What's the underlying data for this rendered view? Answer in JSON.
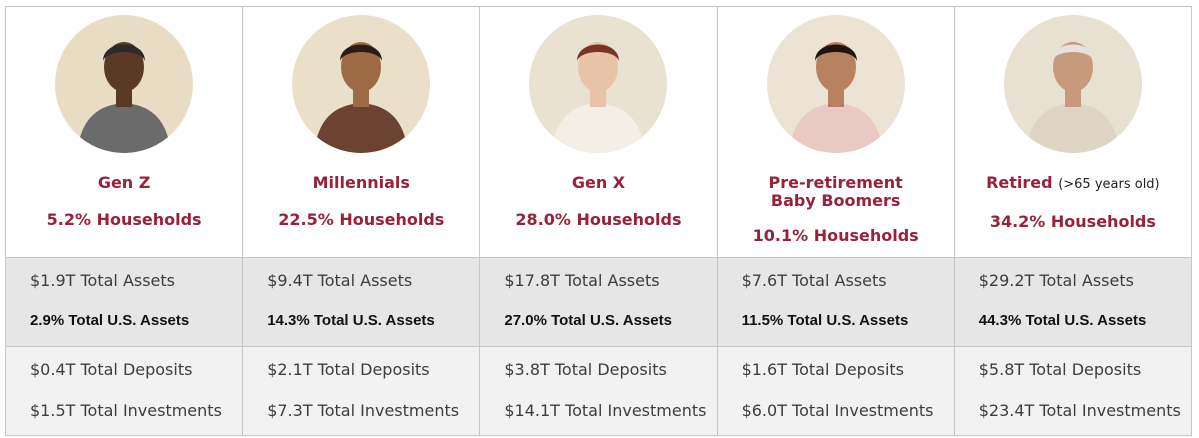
{
  "generations": [
    {
      "name": "Gen Z",
      "note": "",
      "households": "5.2% Households",
      "total_assets": "$1.9T Total Assets",
      "us_assets": "2.9% Total U.S. Assets",
      "deposits": "$0.4T Total Deposits",
      "investments": "$1.5T Total Investments",
      "photo": {
        "bg": "#e8dcc4",
        "skin": "#5a3a26",
        "shirt": "#6b6b6b",
        "hair": "#2a2a2a"
      }
    },
    {
      "name": "Millennials",
      "note": "",
      "households": "22.5% Households",
      "total_assets": "$9.4T Total Assets",
      "us_assets": "14.3% Total U.S. Assets",
      "deposits": "$2.1T Total Deposits",
      "investments": "$7.3T Total Investments",
      "photo": {
        "bg": "#eadfc9",
        "skin": "#9c6a45",
        "shirt": "#6b4330",
        "hair": "#2a1d15"
      }
    },
    {
      "name": "Gen X",
      "note": "",
      "households": "28.0% Households",
      "total_assets": "$17.8T Total Assets",
      "us_assets": "27.0% Total U.S. Assets",
      "deposits": "$3.8T Total Deposits",
      "investments": "$14.1T Total Investments",
      "photo": {
        "bg": "#e9e1d2",
        "skin": "#e8c3a8",
        "shirt": "#f3eee6",
        "hair": "#7a3424"
      }
    },
    {
      "name": "Pre-retirement",
      "name_line2": "Baby Boomers",
      "note": "",
      "households": "10.1% Households",
      "total_assets": "$7.6T Total Assets",
      "us_assets": "11.5% Total U.S. Assets",
      "deposits": "$1.6T Total Deposits",
      "investments": "$6.0T Total Investments",
      "photo": {
        "bg": "#ece3d4",
        "skin": "#b88261",
        "shirt": "#e8c9c4",
        "hair": "#1e1410"
      }
    },
    {
      "name": "Retired",
      "note": "(>65 years old)",
      "households": "34.2% Households",
      "total_assets": "$29.2T Total Assets",
      "us_assets": "44.3% Total U.S. Assets",
      "deposits": "$5.8T Total Deposits",
      "investments": "$23.4T Total Investments",
      "photo": {
        "bg": "#e8e0d0",
        "skin": "#c79a7e",
        "shirt": "#ddd4c4",
        "hair": "#e4e2de"
      }
    }
  ]
}
